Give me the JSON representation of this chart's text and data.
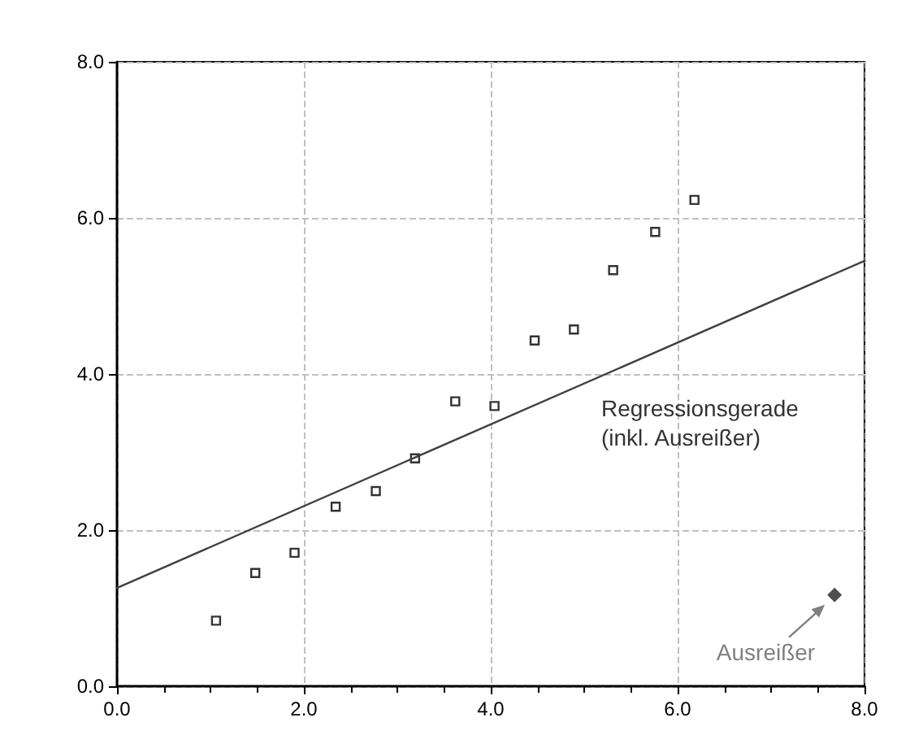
{
  "chart_data": {
    "type": "scatter",
    "xlim": [
      0,
      8
    ],
    "ylim": [
      0,
      8
    ],
    "xticks": [
      {
        "value": 0,
        "label": "0.0"
      },
      {
        "value": 2,
        "label": "2.0"
      },
      {
        "value": 4,
        "label": "4.0"
      },
      {
        "value": 6,
        "label": "6.0"
      },
      {
        "value": 8,
        "label": "8.0"
      }
    ],
    "yticks": [
      {
        "value": 0,
        "label": "0.0"
      },
      {
        "value": 2,
        "label": "2.0"
      },
      {
        "value": 4,
        "label": "4.0"
      },
      {
        "value": 6,
        "label": "6.0"
      },
      {
        "value": 8,
        "label": "8.0"
      }
    ],
    "grid": true,
    "series": [
      {
        "marker": "square",
        "color": "#000000",
        "x": [
          1.06,
          1.48,
          1.9,
          2.34,
          2.77,
          3.19,
          3.62,
          4.04,
          4.47,
          4.89,
          5.31,
          5.76,
          6.18
        ],
        "values": [
          0.84,
          1.45,
          1.71,
          2.3,
          2.5,
          2.92,
          3.65,
          3.59,
          4.43,
          4.57,
          5.33,
          5.82,
          6.23
        ]
      },
      {
        "marker": "diamond",
        "color": "#222222",
        "x": [
          7.68
        ],
        "values": [
          1.17
        ]
      },
      {
        "type": "line",
        "marker": "none",
        "line_style": "solid",
        "color": "#404040",
        "x": [
          0,
          8
        ],
        "values": [
          1.26,
          5.45
        ]
      }
    ],
    "annotations": [
      "Regressionsgerade\n(inkl. Ausreißer)",
      {
        "text": "Ausreißer",
        "x": 7.68,
        "y": 1.17
      }
    ]
  }
}
